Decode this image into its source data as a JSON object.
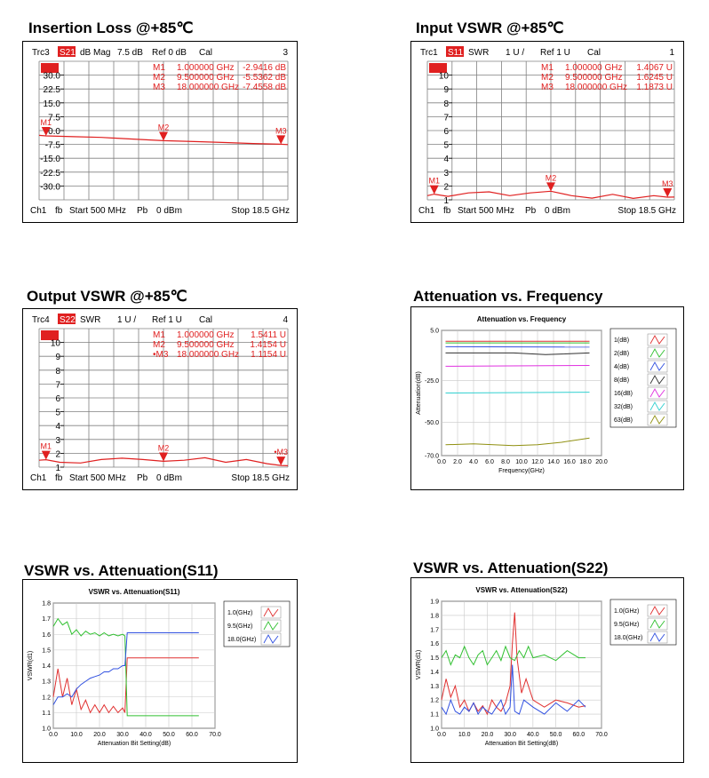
{
  "charts": [
    {
      "kind": "vna",
      "title": "Insertion Loss @+85℃",
      "trace": "Trc3",
      "param": "S21",
      "format": "dB Mag",
      "scale": "7.5 dB",
      "ref": "Ref 0 dB",
      "cal": "Cal",
      "channel_num": "3",
      "markers": [
        {
          "label": "M1",
          "freq": "1.000000 GHz",
          "value": "-2.9416 dB"
        },
        {
          "label": "M2",
          "freq": "9.500000 GHz",
          "value": "-5.5362 dB"
        },
        {
          "label": "M3",
          "freq": "18.000000 GHz",
          "value": "-7.4558 dB"
        }
      ],
      "y_ticks": [
        "30.0",
        "22.5",
        "15.0",
        "7.5",
        "0.0",
        "-7.5",
        "-15.0",
        "-22.5",
        "-30.0"
      ],
      "footer": {
        "ch": "Ch1",
        "fb": "fb",
        "start": "Start  500 MHz",
        "pb": "Pb",
        "power": "0 dBm",
        "stop": "Stop  18.5 GHz"
      }
    },
    {
      "kind": "vna",
      "title": "Input VSWR @+85℃",
      "trace": "Trc1",
      "param": "S11",
      "format": "SWR",
      "scale": "1 U /",
      "ref": "Ref 1 U",
      "cal": "Cal",
      "channel_num": "1",
      "markers": [
        {
          "label": "M1",
          "freq": "1.000000 GHz",
          "value": "1.4067 U"
        },
        {
          "label": "M2",
          "freq": "9.500000 GHz",
          "value": "1.6245 U"
        },
        {
          "label": "M3",
          "freq": "18.000000 GHz",
          "value": "1.1873 U"
        }
      ],
      "y_ticks": [
        "10",
        "9",
        "8",
        "7",
        "6",
        "5",
        "4",
        "3",
        "2",
        "1"
      ],
      "footer": {
        "ch": "Ch1",
        "fb": "fb",
        "start": "Start  500 MHz",
        "pb": "Pb",
        "power": "0 dBm",
        "stop": "Stop  18.5 GHz"
      }
    },
    {
      "kind": "vna",
      "title": "Output VSWR @+85℃",
      "trace": "Trc4",
      "param": "S22",
      "format": "SWR",
      "scale": "1 U /",
      "ref": "Ref 1 U",
      "cal": "Cal",
      "channel_num": "4",
      "markers": [
        {
          "label": "M1",
          "freq": "1.000000 GHz",
          "value": "1.5411 U"
        },
        {
          "label": "M2",
          "freq": "9.500000 GHz",
          "value": "1.4154 U"
        },
        {
          "label": "•M3",
          "freq": "18.000000 GHz",
          "value": "1.1154 U"
        }
      ],
      "y_ticks": [
        "10",
        "9",
        "8",
        "7",
        "6",
        "5",
        "4",
        "3",
        "2",
        "1"
      ],
      "footer": {
        "ch": "Ch1",
        "fb": "fb",
        "start": "Start  500 MHz",
        "pb": "Pb",
        "power": "0 dBm",
        "stop": "Stop  18.5 GHz"
      }
    },
    {
      "kind": "plot",
      "title": "Attenuation vs. Frequency",
      "inner_title": "Attenuation vs. Frequency",
      "xlabel": "Frequency(GHz)",
      "ylabel": "Attenuation(dB)",
      "x_ticks": [
        "0.0",
        "2.0",
        "4.0",
        "6.0",
        "8.0",
        "10.0",
        "12.0",
        "14.0",
        "16.0",
        "18.0",
        "20.0"
      ],
      "y_ticks": [
        "5.0",
        "-25.0",
        "-50.0",
        "-70.0"
      ],
      "legend": [
        "1(dB)",
        "2(dB)",
        "4(dB)",
        "8(dB)",
        "16(dB)",
        "32(dB)",
        "63(dB)"
      ]
    },
    {
      "kind": "plot",
      "title": "VSWR  vs. Attenuation(S11)",
      "inner_title": "VSWR vs. Attenuation(S11)",
      "xlabel": "Attenuation Bit Setting(dB)",
      "ylabel": "VSWR(d1)",
      "x_ticks": [
        "0.0",
        "10.0",
        "20.0",
        "30.0",
        "40.0",
        "50.0",
        "60.0",
        "70.0"
      ],
      "y_ticks": [
        "1.8",
        "1.7",
        "1.6",
        "1.5",
        "1.4",
        "1.3",
        "1.2",
        "1.1",
        "1.0"
      ],
      "legend": [
        "1.0(GHz)",
        "9.5(GHz)",
        "18.0(GHz)"
      ]
    },
    {
      "kind": "plot",
      "title": "VSWR  vs. Attenuation(S22)",
      "inner_title": "VSWR vs. Attenuation(S22)",
      "xlabel": "Attenuation Bit Setting(dB)",
      "ylabel": "VSWR(d1)",
      "x_ticks": [
        "0.0",
        "10.0",
        "20.0",
        "30.0",
        "40.0",
        "50.0",
        "60.0",
        "70.0"
      ],
      "y_ticks": [
        "1.9",
        "1.8",
        "1.7",
        "1.6",
        "1.5",
        "1.4",
        "1.3",
        "1.2",
        "1.1",
        "1.0"
      ],
      "legend": [
        "1.0(GHz)",
        "9.5(GHz)",
        "18.0(GHz)"
      ]
    }
  ],
  "chart_data": [
    {
      "type": "line",
      "title": "Insertion Loss @+85℃",
      "xlabel": "",
      "ylabel": "",
      "xlim": [
        0.5,
        18.5
      ],
      "ylim": [
        -37.5,
        37.5
      ],
      "grid": true,
      "series": [
        {
          "name": "S21",
          "x": [
            0.5,
            1.0,
            3.0,
            5.0,
            7.0,
            9.5,
            12.0,
            14.0,
            16.0,
            18.0,
            18.5
          ],
          "y": [
            -2.6,
            -2.9,
            -3.3,
            -3.7,
            -4.5,
            -5.5,
            -6.0,
            -6.5,
            -7.0,
            -7.4,
            -7.6
          ]
        }
      ]
    },
    {
      "type": "line",
      "title": "Input VSWR @+85℃",
      "xlim": [
        0.5,
        18.5
      ],
      "ylim": [
        1,
        11
      ],
      "grid": true,
      "series": [
        {
          "name": "S11",
          "x": [
            0.5,
            1.0,
            2.0,
            3.5,
            5.0,
            6.5,
            8.0,
            9.5,
            11.0,
            12.5,
            14.0,
            15.5,
            17.0,
            18.0,
            18.5
          ],
          "y": [
            1.3,
            1.41,
            1.25,
            1.5,
            1.58,
            1.3,
            1.5,
            1.62,
            1.3,
            1.12,
            1.4,
            1.1,
            1.3,
            1.19,
            1.2
          ]
        }
      ]
    },
    {
      "type": "line",
      "title": "Output VSWR @+85℃",
      "xlim": [
        0.5,
        18.5
      ],
      "ylim": [
        1,
        11
      ],
      "grid": true,
      "series": [
        {
          "name": "S22",
          "x": [
            0.5,
            1.0,
            2.0,
            3.5,
            5.0,
            6.5,
            8.0,
            9.5,
            11.0,
            12.5,
            14.0,
            15.5,
            17.0,
            18.0,
            18.5
          ],
          "y": [
            1.5,
            1.54,
            1.35,
            1.3,
            1.55,
            1.65,
            1.55,
            1.42,
            1.5,
            1.68,
            1.35,
            1.55,
            1.25,
            1.12,
            1.1
          ]
        }
      ]
    },
    {
      "type": "line",
      "title": "Attenuation vs. Frequency",
      "xlabel": "Frequency(GHz)",
      "ylabel": "Attenuation(dB)",
      "xlim": [
        0,
        20
      ],
      "ylim": [
        -70,
        5
      ],
      "grid": true,
      "legend": "right",
      "series": [
        {
          "name": "1(dB)",
          "x": [
            0.5,
            18.5
          ],
          "y": [
            -1.5,
            -1.5
          ]
        },
        {
          "name": "2(dB)",
          "x": [
            0.5,
            18.5
          ],
          "y": [
            -2.5,
            -2.5
          ]
        },
        {
          "name": "4(dB)",
          "x": [
            0.5,
            18.5
          ],
          "y": [
            -4.8,
            -5.0
          ]
        },
        {
          "name": "8(dB)",
          "x": [
            0.5,
            9.0,
            13.0,
            18.5
          ],
          "y": [
            -8.5,
            -8.5,
            -9.5,
            -8.5
          ]
        },
        {
          "name": "16(dB)",
          "x": [
            0.5,
            18.5
          ],
          "y": [
            -16.5,
            -16.0
          ]
        },
        {
          "name": "32(dB)",
          "x": [
            0.5,
            18.5
          ],
          "y": [
            -32.5,
            -32.0
          ]
        },
        {
          "name": "63(dB)",
          "x": [
            0.5,
            4.0,
            9.0,
            12.0,
            15.0,
            18.5
          ],
          "y": [
            -63.5,
            -63.0,
            -64.0,
            -63.5,
            -62.0,
            -59.5
          ]
        }
      ]
    },
    {
      "type": "line",
      "title": "VSWR vs. Attenuation(S11)",
      "xlabel": "Attenuation Bit Setting(dB)",
      "ylabel": "VSWR(d1)",
      "xlim": [
        0,
        70
      ],
      "ylim": [
        1.0,
        1.8
      ],
      "grid": true,
      "legend": "right",
      "series": [
        {
          "name": "1.0(GHz)",
          "x": [
            0,
            2,
            4,
            6,
            8,
            10,
            12,
            14,
            16,
            18,
            20,
            22,
            24,
            26,
            28,
            30,
            31,
            32,
            40,
            50,
            63
          ],
          "y": [
            1.2,
            1.38,
            1.2,
            1.32,
            1.15,
            1.25,
            1.12,
            1.18,
            1.1,
            1.15,
            1.1,
            1.15,
            1.1,
            1.14,
            1.1,
            1.13,
            1.1,
            1.45,
            1.45,
            1.45,
            1.45
          ]
        },
        {
          "name": "9.5(GHz)",
          "x": [
            0,
            2,
            4,
            6,
            8,
            10,
            12,
            14,
            16,
            18,
            20,
            22,
            24,
            26,
            28,
            30,
            31,
            32,
            40,
            50,
            63
          ],
          "y": [
            1.65,
            1.7,
            1.66,
            1.68,
            1.6,
            1.63,
            1.59,
            1.62,
            1.6,
            1.61,
            1.59,
            1.61,
            1.59,
            1.6,
            1.59,
            1.6,
            1.59,
            1.08,
            1.08,
            1.08,
            1.08
          ]
        },
        {
          "name": "18.0(GHz)",
          "x": [
            0,
            2,
            4,
            6,
            8,
            10,
            12,
            14,
            16,
            18,
            20,
            22,
            24,
            26,
            28,
            30,
            31,
            32,
            40,
            50,
            63
          ],
          "y": [
            1.15,
            1.2,
            1.2,
            1.22,
            1.2,
            1.25,
            1.28,
            1.3,
            1.32,
            1.33,
            1.34,
            1.36,
            1.36,
            1.38,
            1.38,
            1.4,
            1.4,
            1.61,
            1.61,
            1.61,
            1.61
          ]
        }
      ]
    },
    {
      "type": "line",
      "title": "VSWR vs. Attenuation(S22)",
      "xlabel": "Attenuation Bit Setting(dB)",
      "ylabel": "VSWR(d1)",
      "xlim": [
        0,
        70
      ],
      "ylim": [
        1.0,
        1.9
      ],
      "grid": true,
      "legend": "right",
      "series": [
        {
          "name": "1.0(GHz)",
          "x": [
            0,
            2,
            4,
            6,
            8,
            10,
            12,
            14,
            16,
            18,
            20,
            22,
            24,
            26,
            28,
            30,
            31,
            32,
            33,
            35,
            37,
            40,
            45,
            50,
            55,
            60,
            63
          ],
          "y": [
            1.2,
            1.35,
            1.22,
            1.3,
            1.15,
            1.2,
            1.12,
            1.18,
            1.12,
            1.16,
            1.1,
            1.2,
            1.15,
            1.12,
            1.18,
            1.3,
            1.6,
            1.82,
            1.5,
            1.25,
            1.35,
            1.2,
            1.15,
            1.2,
            1.18,
            1.15,
            1.16
          ]
        },
        {
          "name": "9.5(GHz)",
          "x": [
            0,
            2,
            4,
            6,
            8,
            10,
            12,
            14,
            16,
            18,
            20,
            22,
            24,
            26,
            28,
            30,
            32,
            34,
            36,
            38,
            40,
            45,
            50,
            55,
            60,
            63
          ],
          "y": [
            1.5,
            1.55,
            1.45,
            1.52,
            1.5,
            1.58,
            1.5,
            1.45,
            1.52,
            1.55,
            1.45,
            1.5,
            1.55,
            1.48,
            1.58,
            1.5,
            1.48,
            1.55,
            1.5,
            1.58,
            1.5,
            1.52,
            1.48,
            1.55,
            1.5,
            1.5
          ]
        },
        {
          "name": "18.0(GHz)",
          "x": [
            0,
            2,
            4,
            6,
            8,
            10,
            12,
            14,
            16,
            18,
            20,
            22,
            24,
            26,
            28,
            30,
            31,
            32,
            34,
            36,
            40,
            45,
            50,
            55,
            60,
            63
          ],
          "y": [
            1.15,
            1.1,
            1.2,
            1.12,
            1.1,
            1.15,
            1.12,
            1.18,
            1.1,
            1.15,
            1.12,
            1.1,
            1.15,
            1.2,
            1.1,
            1.15,
            1.45,
            1.12,
            1.1,
            1.2,
            1.15,
            1.1,
            1.18,
            1.12,
            1.2,
            1.15
          ]
        }
      ]
    }
  ],
  "colors": {
    "vna_trace": "#e02020",
    "vna_grid": "#808080",
    "series": [
      "#e03030",
      "#30c030",
      "#3050e0",
      "#303030",
      "#e030e0",
      "#30d0d0",
      "#909010"
    ]
  }
}
